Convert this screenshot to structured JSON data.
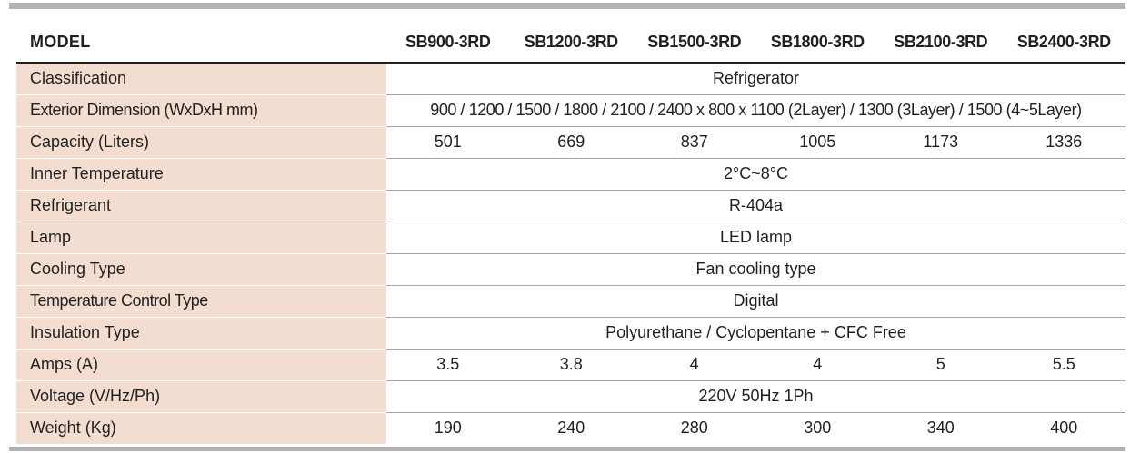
{
  "header": {
    "label": "MODEL",
    "models": [
      "SB900-3RD",
      "SB1200-3RD",
      "SB1500-3RD",
      "SB1800-3RD",
      "SB2100-3RD",
      "SB2400-3RD"
    ]
  },
  "rows": {
    "classification": {
      "label": "Classification",
      "value": "Refrigerator"
    },
    "exterior_dimension": {
      "label": "Exterior Dimension (WxDxH mm)",
      "value": "900 / 1200 / 1500 / 1800 / 2100 / 2400 x 800 x 1100 (2Layer) / 1300 (3Layer) / 1500 (4~5Layer)"
    },
    "capacity": {
      "label": "Capacity (Liters)",
      "values": [
        "501",
        "669",
        "837",
        "1005",
        "1173",
        "1336"
      ]
    },
    "inner_temperature": {
      "label": "Inner Temperature",
      "value": "2°C~8°C"
    },
    "refrigerant": {
      "label": "Refrigerant",
      "value": "R-404a"
    },
    "lamp": {
      "label": "Lamp",
      "value": "LED lamp"
    },
    "cooling_type": {
      "label": "Cooling Type",
      "value": "Fan cooling type"
    },
    "temperature_control_type": {
      "label": "Temperature Control Type",
      "value": "Digital"
    },
    "insulation_type": {
      "label": "Insulation Type",
      "value": "Polyurethane / Cyclopentane + CFC Free"
    },
    "amps": {
      "label": "Amps (A)",
      "values": [
        "3.5",
        "3.8",
        "4",
        "4",
        "5",
        "5.5"
      ]
    },
    "voltage": {
      "label": "Voltage (V/Hz/Ph)",
      "value": "220V 50Hz 1Ph"
    },
    "weight": {
      "label": "Weight (Kg)",
      "values": [
        "190",
        "240",
        "280",
        "300",
        "340",
        "400"
      ]
    }
  },
  "colors": {
    "label_bg": "#f2ddd0",
    "rule": "#b3b3b3",
    "text": "#231f20"
  }
}
